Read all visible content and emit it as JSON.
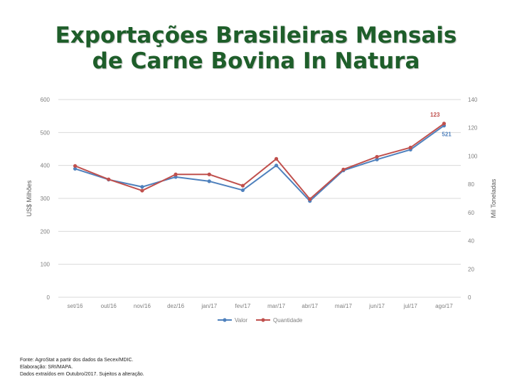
{
  "slide": {
    "title_line1": "Exportações Brasileiras Mensais",
    "title_line2": "de Carne Bovina In Natura"
  },
  "colors": {
    "valor": "#4f81bd",
    "quantidade": "#c0504d",
    "title": "#1e5e2a",
    "grid": "#d9d9d9"
  },
  "chart_data": {
    "type": "line",
    "title": "",
    "categories": [
      "set/16",
      "out/16",
      "nov/16",
      "dez/16",
      "jan/17",
      "fev/17",
      "mar/17",
      "abr/17",
      "mai/17",
      "jun/17",
      "jul/17",
      "ago/17"
    ],
    "ylabel": "US$ Milhões",
    "y2label": "Mil Toneladas",
    "ylim": [
      0,
      600
    ],
    "y2lim": [
      0,
      140
    ],
    "yticks": [
      "0",
      "100",
      "200",
      "300",
      "400",
      "500",
      "600"
    ],
    "y2ticks": [
      "0",
      "20",
      "40",
      "60",
      "80",
      "100",
      "120",
      "140"
    ],
    "grid": true,
    "legend_position": "bottom",
    "series": [
      {
        "name": "Valor",
        "axis": "left",
        "color": "#4f81bd",
        "values": [
          390,
          357,
          335,
          365,
          352,
          325,
          400,
          292,
          385,
          418,
          448,
          521
        ]
      },
      {
        "name": "Quantidade",
        "axis": "right",
        "color": "#c0504d",
        "values": [
          93,
          83.5,
          75.5,
          87,
          87,
          79,
          98,
          69.5,
          90.5,
          99.5,
          106,
          123
        ]
      }
    ],
    "annotations": [
      {
        "text": "123",
        "series": "Quantidade",
        "category": "ago/17"
      },
      {
        "text": "521",
        "series": "Valor",
        "category": "ago/17"
      }
    ]
  },
  "footnote": {
    "line1": "Fonte: AgroStat a partir dos dados da Secex/MDIC.",
    "line2": "Elaboração: SRI/MAPA.",
    "line3": "Dados extraídos em Outubro/2017. Sujeitos a alteração."
  }
}
